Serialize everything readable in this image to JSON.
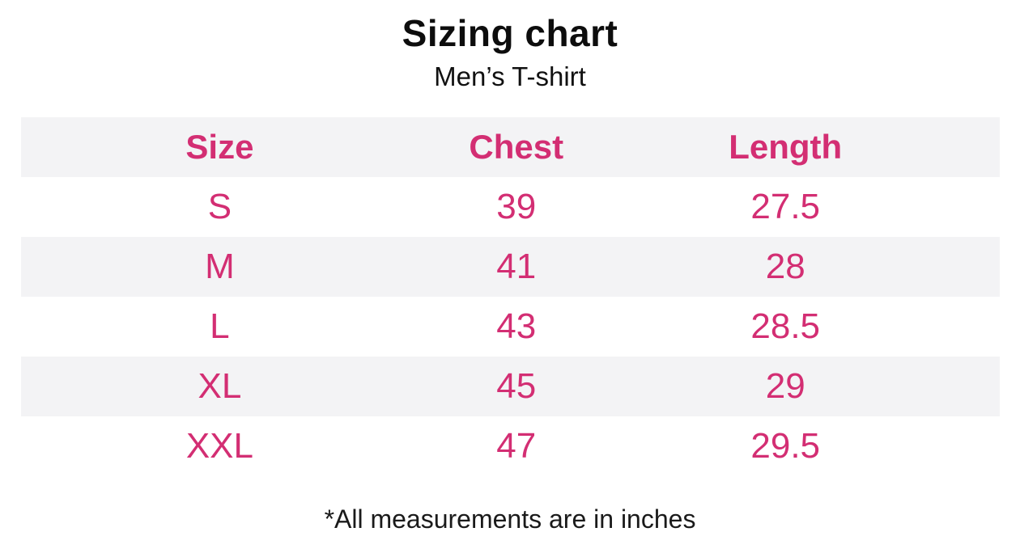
{
  "page": {
    "title": "Sizing chart",
    "subtitle": "Men’s T-shirt",
    "footnote": "*All measurements are in inches"
  },
  "colors": {
    "accent_pink": "#d32e73",
    "stripe_gray": "#f3f3f5",
    "text_black": "#0d0d0d",
    "background": "#ffffff"
  },
  "chart_data": {
    "type": "table",
    "title": "Sizing chart",
    "subtitle": "Men’s T-shirt",
    "columns": [
      "Size",
      "Chest",
      "Length"
    ],
    "rows": [
      [
        "S",
        "39",
        "27.5"
      ],
      [
        "M",
        "41",
        "28"
      ],
      [
        "L",
        "43",
        "28.5"
      ],
      [
        "XL",
        "45",
        "29"
      ],
      [
        "XXL",
        "47",
        "29.5"
      ]
    ],
    "units": "inches",
    "footnote": "*All measurements are in inches",
    "layout_hints": {
      "striped_rows": true,
      "stripe_pattern": "header and alternating rows shaded",
      "column_alignment": "center"
    }
  }
}
